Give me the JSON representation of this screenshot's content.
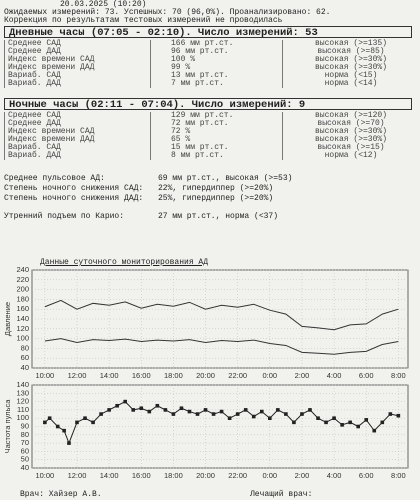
{
  "header": {
    "start": "20.03.2025 (10:20)",
    "summary": "Ожидаемых измерений: 73.  Успешных: 70 (96,0%).  Проанализировано: 62.",
    "correction": "Коррекция по результатам тестовых измерений не проводилась"
  },
  "day": {
    "title": "Дневные часы (07:05 - 02:10). Число измерений: 53",
    "rows": [
      [
        "Среднее САД",
        "166 мм рт.ст.",
        "высокая (>=135)"
      ],
      [
        "Среднее ДАД",
        "96 мм рт.ст.",
        "высокая (>=85)"
      ],
      [
        "Индекс времени САД",
        "100 %",
        "высокая (>=30%)"
      ],
      [
        "Индекс времени ДАД",
        "99 %",
        "высокая (>=30%)"
      ],
      [
        "Вариаб. САД",
        "13 мм рт.ст.",
        "норма (<15)"
      ],
      [
        "Вариаб. ДАД",
        "7 мм рт.ст.",
        "норма (<14)"
      ]
    ]
  },
  "night": {
    "title": "Ночные часы (02:11 - 07:04). Число измерений: 9",
    "rows": [
      [
        "Среднее САД",
        "129 мм рт.ст.",
        "высокая (>=120)"
      ],
      [
        "Среднее ДАД",
        "72 мм рт.ст.",
        "высокая (>=70)"
      ],
      [
        "Индекс времени САД",
        "72 %",
        "высокая (>=30%)"
      ],
      [
        "Индекс времени ДАД",
        "65 %",
        "высокая (>=30%)"
      ],
      [
        "Вариаб. САД",
        "15 мм рт.ст.",
        "высокая (>=15)"
      ],
      [
        "Вариаб. ДАД",
        "8 мм рт.ст.",
        "норма (<12)"
      ]
    ]
  },
  "extra": [
    [
      "Среднее пульсовое АД:",
      "69 мм рт.ст., высокая (>=53)"
    ],
    [
      "Степень ночного снижения САД:",
      "22%, гипердиппер (>=20%)"
    ],
    [
      "Степень ночного снижения ДАД:",
      "25%, гипердиппер (>=20%)"
    ],
    [
      "Утренний подъем по Карио:",
      "27 мм рт.ст., норма (<37)"
    ]
  ],
  "charts_title": "Данные суточного мониторирования АД",
  "chart_data": [
    {
      "type": "line",
      "y_label": "Давление",
      "color": "#333333",
      "x": [
        10,
        11,
        12,
        13,
        14,
        15,
        16,
        17,
        18,
        19,
        20,
        21,
        22,
        23,
        24,
        25,
        26,
        27,
        28,
        29,
        30,
        31,
        32
      ],
      "series": [
        {
          "values": [
            165,
            178,
            160,
            172,
            168,
            175,
            162,
            170,
            166,
            174,
            160,
            168,
            164,
            170,
            158,
            150,
            125,
            122,
            118,
            128,
            130,
            150,
            160
          ]
        },
        {
          "values": [
            95,
            100,
            92,
            98,
            96,
            99,
            94,
            97,
            95,
            98,
            92,
            96,
            94,
            97,
            90,
            86,
            72,
            70,
            68,
            72,
            74,
            88,
            94
          ]
        }
      ],
      "xlim": [
        9.2,
        32.6
      ],
      "ylim": [
        40,
        240
      ],
      "yticks": [
        40,
        60,
        80,
        100,
        120,
        140,
        160,
        180,
        200,
        220,
        240
      ],
      "xticks": [
        {
          "value": 10,
          "label": "10:00"
        },
        {
          "value": 12,
          "label": "12:00"
        },
        {
          "value": 14,
          "label": "14:00"
        },
        {
          "value": 16,
          "label": "16:00"
        },
        {
          "value": 18,
          "label": "18:00"
        },
        {
          "value": 20,
          "label": "20:00"
        },
        {
          "value": 22,
          "label": "22:00"
        },
        {
          "value": 24,
          "label": "0:00"
        },
        {
          "value": 26,
          "label": "2:00"
        },
        {
          "value": 28,
          "label": "4:00"
        },
        {
          "value": 30,
          "label": "6:00"
        },
        {
          "value": 32,
          "label": "8:00"
        }
      ],
      "grid": true
    },
    {
      "type": "line",
      "y_label": "Частота пульса",
      "color": "#222222",
      "markers": true,
      "x": [
        10,
        10.3,
        10.8,
        11.2,
        11.5,
        12,
        12.5,
        13,
        13.5,
        14,
        14.5,
        15,
        15.5,
        16,
        16.5,
        17,
        17.5,
        18,
        18.5,
        19,
        19.5,
        20,
        20.5,
        21,
        21.5,
        22,
        22.5,
        23,
        23.5,
        24,
        24.5,
        25,
        25.5,
        26,
        26.5,
        27,
        27.5,
        28,
        28.5,
        29,
        29.5,
        30,
        30.5,
        31,
        31.5,
        32
      ],
      "series": [
        {
          "values": [
            95,
            100,
            90,
            85,
            70,
            95,
            100,
            95,
            105,
            110,
            115,
            120,
            110,
            112,
            108,
            115,
            110,
            105,
            112,
            108,
            105,
            110,
            105,
            108,
            100,
            105,
            110,
            102,
            108,
            100,
            110,
            105,
            95,
            105,
            110,
            100,
            95,
            100,
            92,
            95,
            90,
            98,
            85,
            95,
            105,
            103
          ]
        }
      ],
      "xlim": [
        9.2,
        32.6
      ],
      "ylim": [
        40,
        140
      ],
      "yticks": [
        40,
        50,
        60,
        70,
        80,
        90,
        100,
        110,
        120,
        130,
        140
      ],
      "xticks": [
        {
          "value": 10,
          "label": "10:00"
        },
        {
          "value": 12,
          "label": "12:00"
        },
        {
          "value": 14,
          "label": "14:00"
        },
        {
          "value": 16,
          "label": "16:00"
        },
        {
          "value": 18,
          "label": "18:00"
        },
        {
          "value": 20,
          "label": "20:00"
        },
        {
          "value": 22,
          "label": "22:00"
        },
        {
          "value": 24,
          "label": "0:00"
        },
        {
          "value": 26,
          "label": "2:00"
        },
        {
          "value": 28,
          "label": "4:00"
        },
        {
          "value": 30,
          "label": "6:00"
        },
        {
          "value": 32,
          "label": "8:00"
        }
      ],
      "grid": true
    }
  ],
  "footer": {
    "doctor": "Врач: Хайзер А.В.",
    "attending": "Лечащий врач:"
  }
}
